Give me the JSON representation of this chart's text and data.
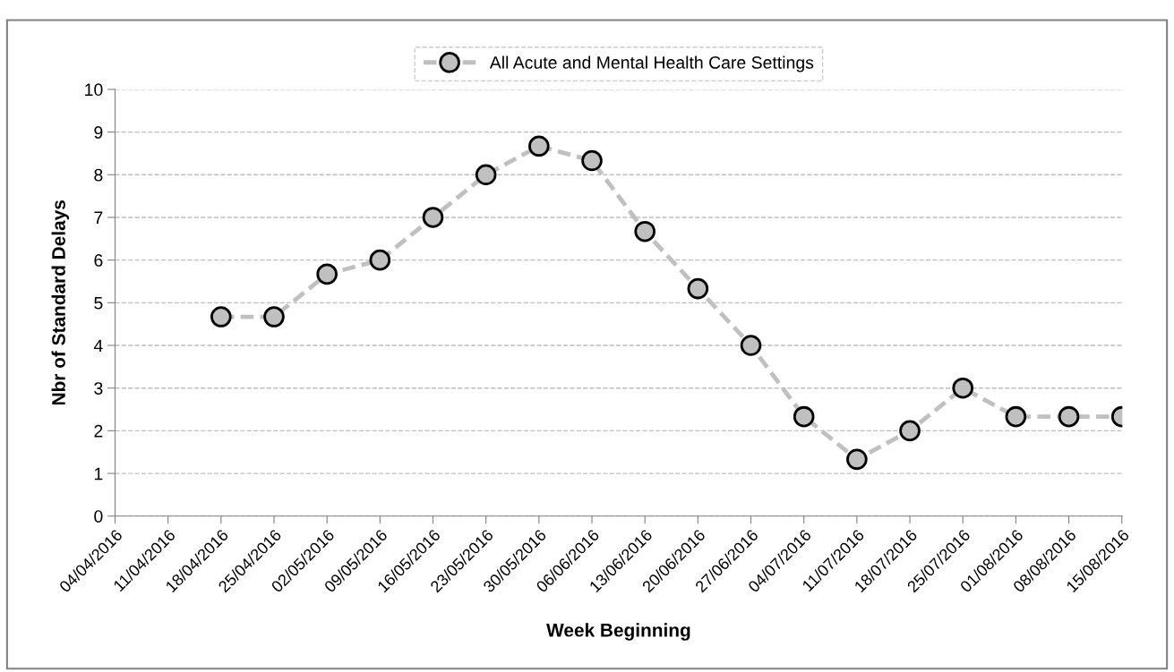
{
  "chart_data": {
    "type": "line",
    "xlabel": "Week Beginning",
    "ylabel": "Nbr of Standard Delays",
    "categories": [
      "04/04/2016",
      "11/04/2016",
      "18/04/2016",
      "25/04/2016",
      "02/05/2016",
      "09/05/2016",
      "16/05/2016",
      "23/05/2016",
      "30/05/2016",
      "06/06/2016",
      "13/06/2016",
      "20/06/2016",
      "27/06/2016",
      "04/07/2016",
      "11/07/2016",
      "18/07/2016",
      "25/07/2016",
      "01/08/2016",
      "08/08/2016",
      "15/08/2016"
    ],
    "series": [
      {
        "name": "All Acute and Mental Health Care Settings",
        "color": "#c0c0c0",
        "values": [
          null,
          null,
          4.67,
          4.67,
          5.67,
          6,
          7,
          8,
          8.67,
          8.33,
          6.67,
          5.33,
          4,
          2.33,
          1.33,
          2,
          3,
          2.33,
          2.33,
          2.33
        ]
      }
    ],
    "ylim": [
      0,
      10
    ],
    "yticks": [
      0,
      1,
      2,
      3,
      4,
      5,
      6,
      7,
      8,
      9,
      10
    ],
    "grid": "y",
    "legend": "top",
    "marker": "circle",
    "line_style": "dashed"
  }
}
